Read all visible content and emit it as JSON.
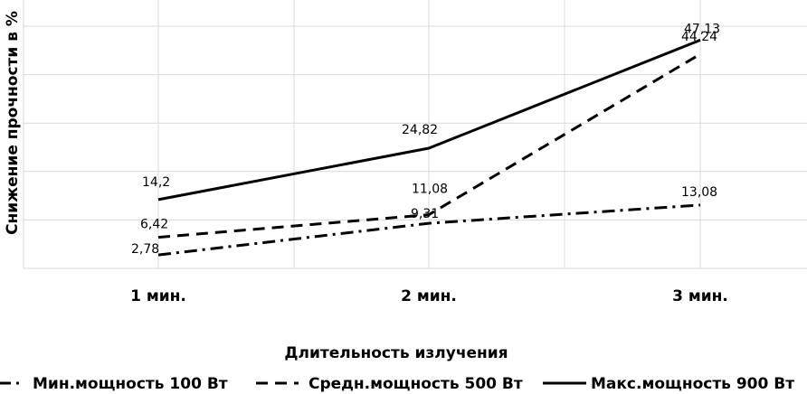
{
  "chart_data": {
    "type": "line",
    "categories": [
      "1 мин.",
      "2 мин.",
      "3 мин."
    ],
    "xlabel": "Длительность излучения",
    "ylabel": "Снижение прочности в %",
    "ylim": [
      0,
      50
    ],
    "grid": "vertical and horizontal",
    "legend_position": "bottom",
    "series": [
      {
        "name": "Мин.мощность 100 Вт",
        "values": [
          2.78,
          9.31,
          13.08
        ],
        "labels": [
          "2,78",
          "9,31",
          "13,08"
        ],
        "style": "dash-dot"
      },
      {
        "name": "Средн.мощность 500 Вт",
        "values": [
          6.42,
          11.08,
          44.24
        ],
        "labels": [
          "6,42",
          "11,08",
          "44,24"
        ],
        "style": "dashed"
      },
      {
        "name": "Макс.мощность 900 Вт",
        "values": [
          14.2,
          24.82,
          47.13
        ],
        "labels": [
          "14,2",
          "24,82",
          "47,13"
        ],
        "style": "solid"
      }
    ]
  },
  "colors": {
    "line": "#000000",
    "grid": "#d9d9d9"
  }
}
